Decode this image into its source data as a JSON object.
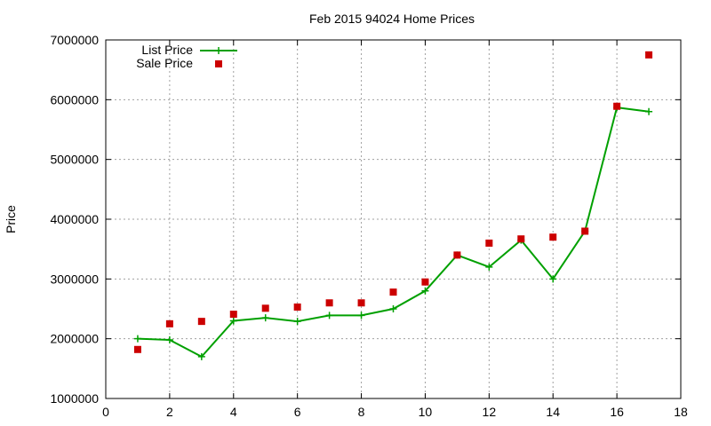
{
  "chart_data": {
    "type": "line",
    "title": "Feb 2015 94024 Home Prices",
    "xlabel": "",
    "ylabel": "Price",
    "xlim": [
      0,
      18
    ],
    "ylim": [
      1000000,
      7000000
    ],
    "x_ticks": [
      0,
      2,
      4,
      6,
      8,
      10,
      12,
      14,
      16,
      18
    ],
    "y_ticks": [
      1000000,
      2000000,
      3000000,
      4000000,
      5000000,
      6000000,
      7000000
    ],
    "grid": true,
    "legend_position": "top-left",
    "series": [
      {
        "name": "List Price",
        "style": "line-with-plus-markers",
        "color": "#00a000",
        "x": [
          1,
          2,
          3,
          4,
          5,
          6,
          7,
          8,
          9,
          10,
          11,
          12,
          13,
          14,
          15,
          16,
          17
        ],
        "values": [
          2000000,
          1980000,
          1700000,
          2300000,
          2350000,
          2290000,
          2390000,
          2390000,
          2500000,
          2800000,
          3400000,
          3200000,
          3650000,
          3000000,
          3800000,
          5870000,
          5800000
        ]
      },
      {
        "name": "Sale Price",
        "style": "square-points",
        "color": "#cc0000",
        "x": [
          1,
          2,
          3,
          4,
          5,
          6,
          7,
          8,
          9,
          10,
          11,
          12,
          13,
          14,
          15,
          16,
          17
        ],
        "values": [
          1820000,
          2250000,
          2290000,
          2410000,
          2510000,
          2530000,
          2600000,
          2600000,
          2780000,
          2950000,
          3400000,
          3600000,
          3670000,
          3700000,
          3800000,
          5890000,
          6750000
        ]
      }
    ]
  }
}
